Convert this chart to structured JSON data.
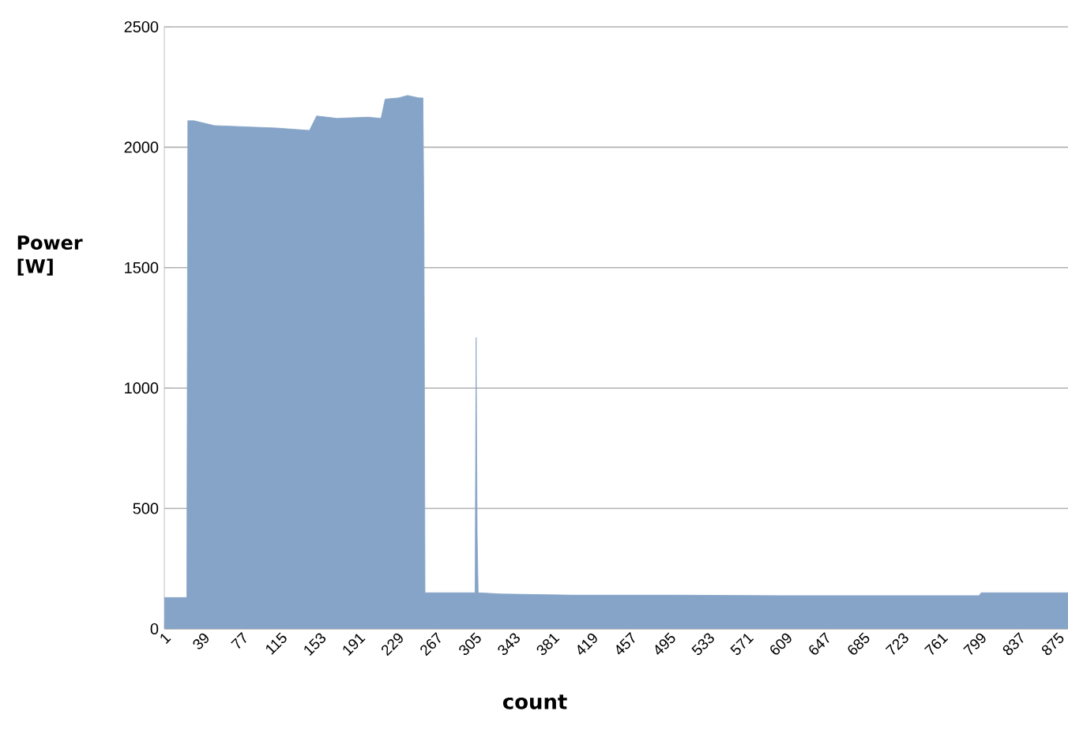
{
  "chart_data": {
    "type": "area",
    "xlabel": "count",
    "ylabel": "Power [W]",
    "x": [
      1,
      23,
      24,
      30,
      50,
      80,
      110,
      143,
      150,
      170,
      200,
      213,
      217,
      230,
      239,
      250,
      254,
      255,
      256,
      280,
      305,
      306,
      307,
      308,
      330,
      400,
      500,
      600,
      700,
      798,
      800,
      850,
      885
    ],
    "series": [
      {
        "color": "#86a4c8",
        "values": [
          130,
          130,
          2110,
          2110,
          2090,
          2085,
          2080,
          2070,
          2130,
          2120,
          2125,
          2120,
          2200,
          2205,
          2215,
          2205,
          2205,
          1665,
          150,
          150,
          150,
          1210,
          400,
          150,
          145,
          140,
          140,
          138,
          138,
          138,
          150,
          150,
          150
        ]
      }
    ],
    "xlim": [
      1,
      885
    ],
    "ylim": [
      0,
      2500
    ],
    "xticks": [
      1,
      39,
      77,
      115,
      153,
      191,
      229,
      267,
      305,
      343,
      381,
      419,
      457,
      495,
      533,
      571,
      609,
      647,
      685,
      723,
      761,
      799,
      837,
      875
    ],
    "yticks": [
      0,
      500,
      1000,
      1500,
      2000,
      2500
    ],
    "grid": "y"
  }
}
